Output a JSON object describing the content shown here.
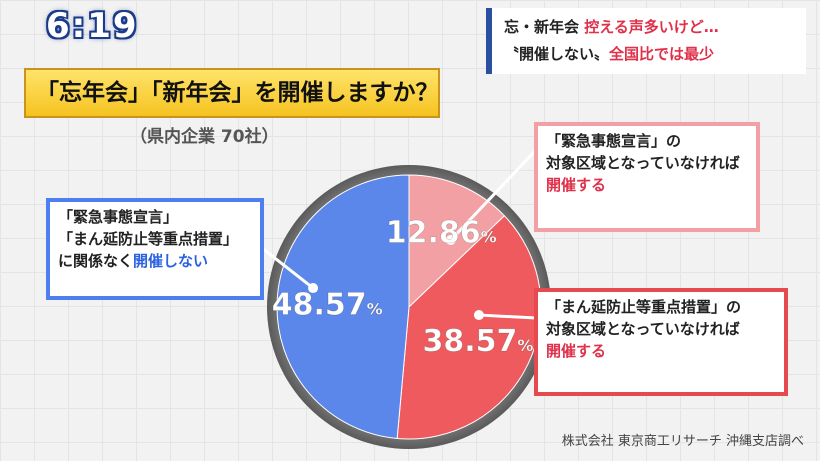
{
  "clock": "6:19",
  "headline": {
    "line1_a": "忘・新年会",
    "line1_b": "控える声多いけど…",
    "line2_a": "〝開催しない〟",
    "line2_b": "全国比では最少"
  },
  "question": "「忘年会」「新年会」を開催しますか？",
  "subtitle": "（県内企業 70社）",
  "source": "株式会社 東京商工リサーチ 沖縄支店調べ",
  "chart_data": {
    "type": "pie",
    "title": "「忘年会」「新年会」を開催しますか？",
    "subtitle": "（県内企業 70社）",
    "slices": [
      {
        "id": "s1",
        "value": 12.86,
        "label": "12.86",
        "unit": "%",
        "color": "#f3a0a4",
        "text": [
          "「緊急事態宣言」の",
          "対象区域となっていなければ",
          "開催する"
        ]
      },
      {
        "id": "s2",
        "value": 38.57,
        "label": "38.57",
        "unit": "%",
        "color": "#ef5a5e",
        "text": [
          "「まん延防止等重点措置」の",
          "対象区域となっていなければ",
          "開催する"
        ]
      },
      {
        "id": "s3",
        "value": 48.57,
        "label": "48.57",
        "unit": "%",
        "color": "#5b86ea",
        "text": [
          "「緊急事態宣言」",
          "「まん延防止等重点措置」",
          "に関係なく",
          "開催しない"
        ]
      }
    ]
  }
}
